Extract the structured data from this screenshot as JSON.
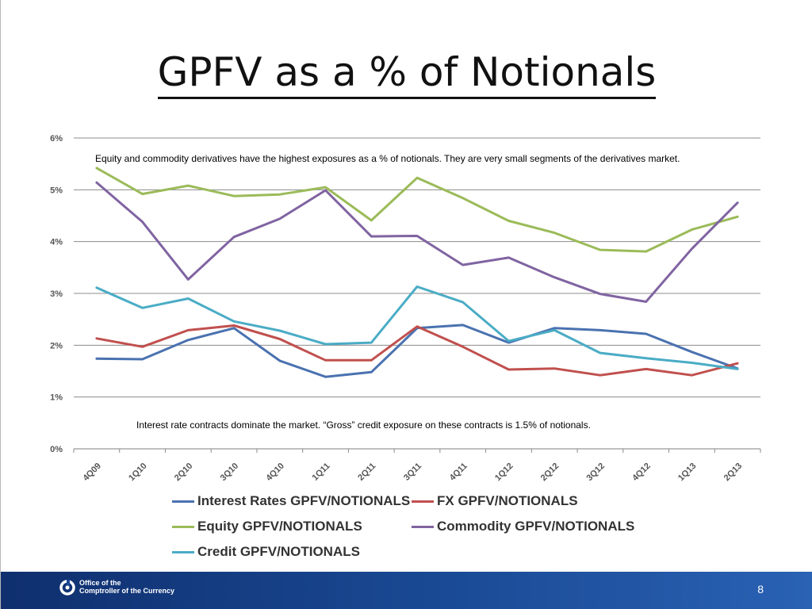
{
  "slide": {
    "title": "GPFV as a % of Notionals",
    "page_number": "8",
    "footer": {
      "agency_line1": "Office of the",
      "agency_line2": "Comptroller of the Currency",
      "logo": "occ-logo-icon"
    }
  },
  "chart_data": {
    "type": "line",
    "title": "",
    "xlabel": "",
    "ylabel": "",
    "ylim": [
      0,
      6
    ],
    "y_ticks": [
      "0%",
      "1%",
      "2%",
      "3%",
      "4%",
      "5%",
      "6%"
    ],
    "grid": true,
    "legend_position": "bottom",
    "categories": [
      "4Q09",
      "1Q10",
      "2Q10",
      "3Q10",
      "4Q10",
      "1Q11",
      "2Q11",
      "3Q11",
      "4Q11",
      "1Q12",
      "2Q12",
      "3Q12",
      "4Q12",
      "1Q13",
      "2Q13"
    ],
    "series": [
      {
        "name": "Interest Rates GPFV/NOTIONALS",
        "color": "#4a72b0",
        "values": [
          1.74,
          1.73,
          2.1,
          2.33,
          1.7,
          1.39,
          1.48,
          2.33,
          2.39,
          2.05,
          2.33,
          2.29,
          2.22,
          1.87,
          1.55
        ]
      },
      {
        "name": "FX GPFV/NOTIONALS",
        "color": "#c0504d",
        "values": [
          2.13,
          1.97,
          2.29,
          2.38,
          2.12,
          1.71,
          1.71,
          2.36,
          1.97,
          1.53,
          1.55,
          1.42,
          1.54,
          1.42,
          1.65
        ]
      },
      {
        "name": "Equity GPFV/NOTIONALS",
        "color": "#9bbb59",
        "values": [
          5.42,
          4.92,
          5.08,
          4.88,
          4.91,
          5.05,
          4.41,
          5.23,
          4.84,
          4.4,
          4.17,
          3.84,
          3.81,
          4.23,
          4.48
        ]
      },
      {
        "name": "Commodity GPFV/NOTIONALS",
        "color": "#8064a2",
        "values": [
          5.14,
          4.38,
          3.27,
          4.09,
          4.44,
          4.99,
          4.1,
          4.11,
          3.55,
          3.69,
          3.31,
          2.99,
          2.84,
          3.86,
          4.75
        ]
      },
      {
        "name": "Credit GPFV/NOTIONALS",
        "color": "#4bacc6",
        "values": [
          3.11,
          2.72,
          2.9,
          2.46,
          2.28,
          2.02,
          2.05,
          3.13,
          2.83,
          2.08,
          2.29,
          1.85,
          1.75,
          1.66,
          1.54
        ]
      }
    ],
    "annotations": [
      {
        "id": "top",
        "text": "Equity and commodity derivatives have the highest exposures as a % of notionals.   They are very small segments of the derivatives market."
      },
      {
        "id": "bottom",
        "text": "Interest rate contracts dominate the market.  “Gross” credit exposure on these contracts is 1.5% of notionals."
      }
    ]
  }
}
